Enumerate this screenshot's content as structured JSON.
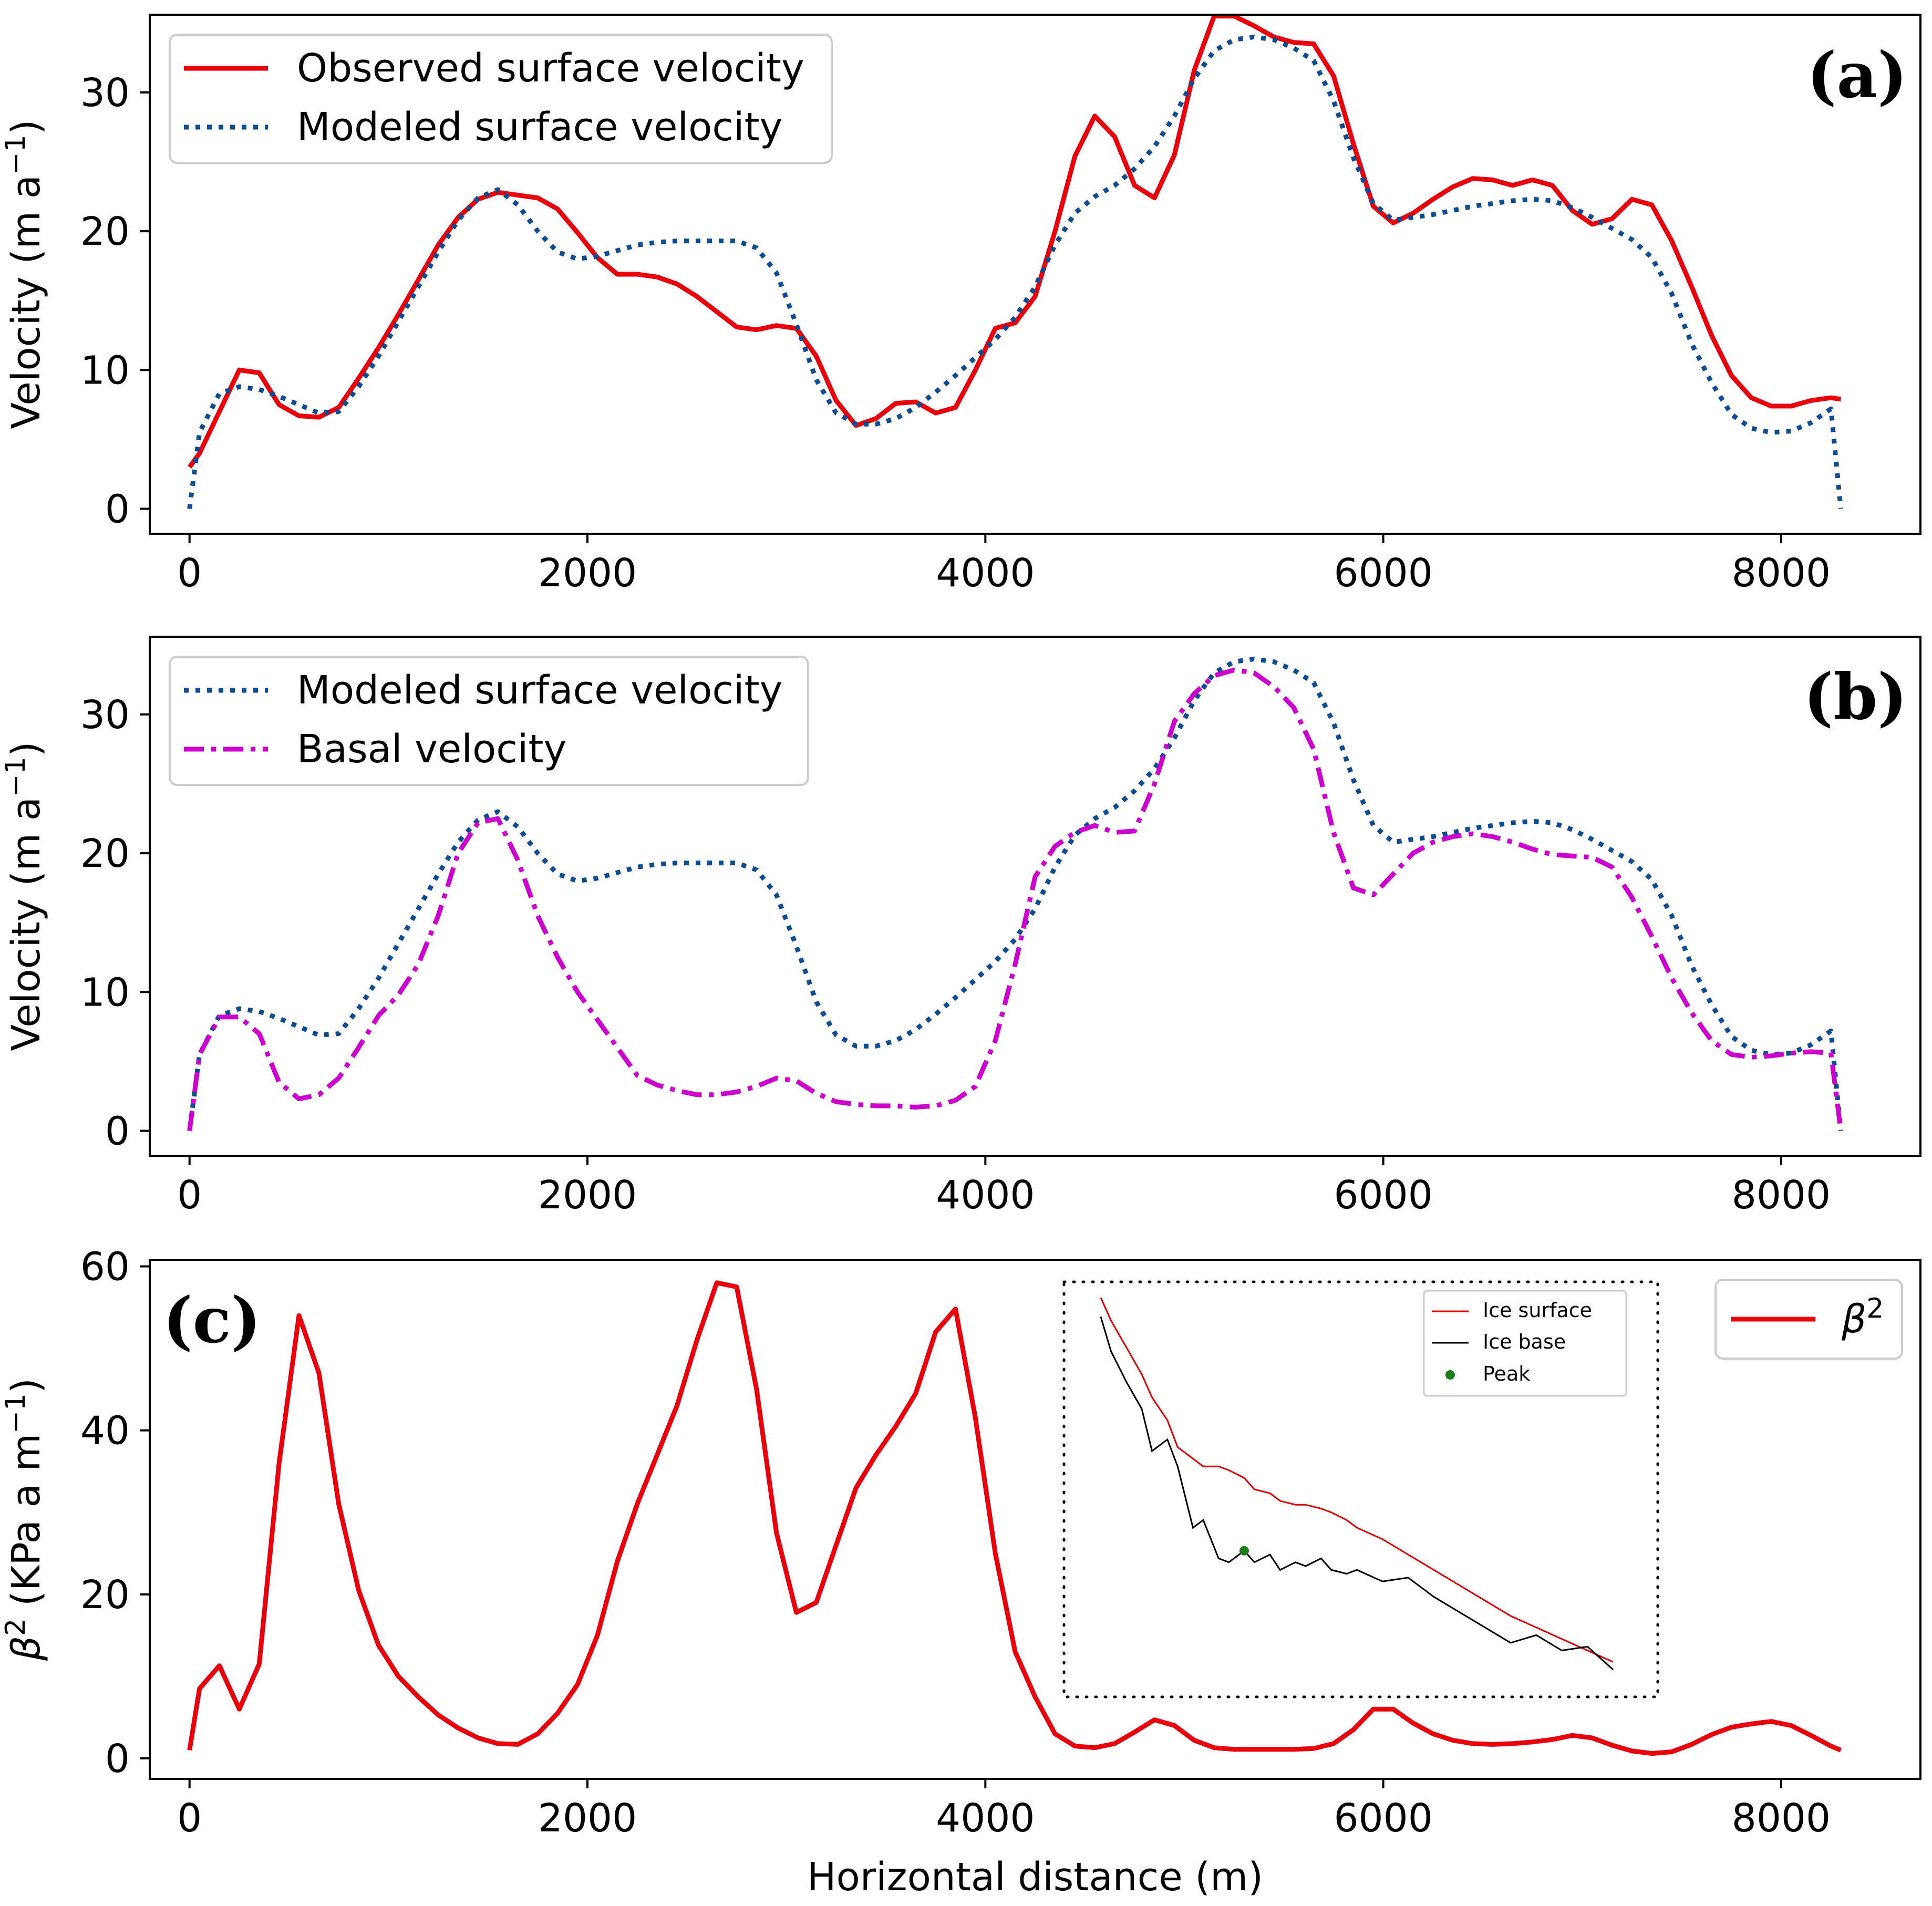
{
  "colors": {
    "observed": "#e8000b",
    "modeled": "#0e4c92",
    "basal": "#cc00cc",
    "beta": "#e8000b",
    "inset_surface": "#e00000",
    "inset_base": "#000000",
    "inset_peak": "#1a7f1a"
  },
  "chart_data": [
    {
      "type": "line",
      "panel_label": "(a)",
      "xlabel": "",
      "ylabel_text": "Velocity (m a",
      "ylabel_exp": "−1",
      "ylabel_close": ")",
      "xlim": [
        -200,
        8700
      ],
      "ylim": [
        -1.8,
        35.6
      ],
      "xticks": [
        0,
        2000,
        4000,
        6000,
        8000
      ],
      "yticks": [
        0,
        10,
        20,
        30
      ],
      "legend_position": "upper-left",
      "series": [
        {
          "name": "Observed surface velocity",
          "style": "solid",
          "color_key": "observed",
          "x": [
            0,
            50,
            150,
            250,
            350,
            450,
            550,
            650,
            750,
            850,
            950,
            1050,
            1150,
            1250,
            1350,
            1450,
            1550,
            1650,
            1750,
            1850,
            1950,
            2050,
            2150,
            2250,
            2350,
            2450,
            2550,
            2650,
            2750,
            2850,
            2950,
            3050,
            3150,
            3250,
            3350,
            3450,
            3550,
            3650,
            3750,
            3850,
            3950,
            4050,
            4150,
            4250,
            4350,
            4450,
            4550,
            4650,
            4750,
            4850,
            4950,
            5050,
            5150,
            5250,
            5350,
            5450,
            5550,
            5650,
            5750,
            5850,
            5950,
            6050,
            6150,
            6250,
            6350,
            6450,
            6550,
            6650,
            6750,
            6850,
            6950,
            7050,
            7150,
            7250,
            7350,
            7450,
            7550,
            7650,
            7750,
            7850,
            7950,
            8050,
            8150,
            8250,
            8300
          ],
          "values": [
            3,
            4,
            7,
            10,
            9.8,
            7.5,
            6.7,
            6.6,
            7.3,
            9.4,
            11.6,
            14,
            16.5,
            19,
            21,
            22.3,
            22.8,
            22.6,
            22.4,
            21.6,
            19.9,
            18.1,
            16.9,
            16.9,
            16.7,
            16.2,
            15.3,
            14.2,
            13.1,
            12.9,
            13.2,
            13,
            11,
            7.8,
            6,
            6.5,
            7.6,
            7.7,
            6.9,
            7.3,
            10,
            13,
            13.4,
            15.3,
            20,
            25.4,
            28.3,
            26.8,
            23.3,
            22.4,
            25.5,
            31.6,
            35.5,
            35.5,
            34.8,
            34,
            33.6,
            33.5,
            31.2,
            26.3,
            21.8,
            20.6,
            21.3,
            22.3,
            23.2,
            23.8,
            23.7,
            23.3,
            23.7,
            23.3,
            21.5,
            20.5,
            20.9,
            22.3,
            21.9,
            19.3,
            16,
            12.5,
            9.6,
            8,
            7.4,
            7.4,
            7.8,
            8,
            7.9
          ]
        },
        {
          "name": "Modeled surface velocity",
          "style": "dotted",
          "color_key": "modeled",
          "x": [
            0,
            50,
            150,
            250,
            350,
            450,
            550,
            650,
            750,
            850,
            950,
            1050,
            1150,
            1250,
            1350,
            1450,
            1550,
            1650,
            1750,
            1850,
            1950,
            2050,
            2150,
            2250,
            2350,
            2450,
            2550,
            2650,
            2750,
            2850,
            2950,
            3050,
            3150,
            3250,
            3350,
            3450,
            3550,
            3650,
            3750,
            3850,
            3950,
            4050,
            4150,
            4250,
            4350,
            4450,
            4550,
            4650,
            4750,
            4850,
            4950,
            5050,
            5150,
            5250,
            5350,
            5450,
            5550,
            5650,
            5750,
            5850,
            5950,
            6050,
            6150,
            6250,
            6350,
            6450,
            6550,
            6650,
            6750,
            6850,
            6950,
            7050,
            7150,
            7250,
            7350,
            7450,
            7550,
            7650,
            7750,
            7850,
            7950,
            8050,
            8150,
            8250,
            8300
          ],
          "values": [
            0,
            5.5,
            8.3,
            8.8,
            8.6,
            8.1,
            7.5,
            6.9,
            7,
            8.8,
            11,
            13.5,
            16,
            18.5,
            20.8,
            22.4,
            23,
            21.9,
            20,
            18.5,
            18,
            18.2,
            18.6,
            19,
            19.2,
            19.3,
            19.3,
            19.3,
            19.3,
            18.8,
            17,
            13.3,
            9.3,
            6.9,
            6.1,
            6.1,
            6.5,
            7.3,
            8.4,
            9.6,
            10.9,
            12.2,
            13.8,
            16,
            19,
            21.3,
            22.5,
            23.3,
            24.5,
            26.1,
            28.3,
            31,
            33,
            33.8,
            34,
            33.8,
            33.2,
            32.3,
            29.4,
            25.3,
            22,
            20.8,
            21,
            21.2,
            21.5,
            21.8,
            22,
            22.2,
            22.3,
            22.2,
            21.7,
            21,
            20.2,
            19.4,
            18.1,
            15.5,
            11.9,
            9.1,
            6.8,
            5.8,
            5.5,
            5.6,
            6.2,
            7.2,
            0
          ]
        }
      ]
    },
    {
      "type": "line",
      "panel_label": "(b)",
      "xlabel": "",
      "ylabel_text": "Velocity (m a",
      "ylabel_exp": "−1",
      "ylabel_close": ")",
      "xlim": [
        -200,
        8700
      ],
      "ylim": [
        -1.8,
        35.6
      ],
      "xticks": [
        0,
        2000,
        4000,
        6000,
        8000
      ],
      "yticks": [
        0,
        10,
        20,
        30
      ],
      "legend_position": "upper-left",
      "series": [
        {
          "name": "Modeled surface velocity",
          "style": "dotted",
          "color_key": "modeled",
          "x": [
            0,
            50,
            150,
            250,
            350,
            450,
            550,
            650,
            750,
            850,
            950,
            1050,
            1150,
            1250,
            1350,
            1450,
            1550,
            1650,
            1750,
            1850,
            1950,
            2050,
            2150,
            2250,
            2350,
            2450,
            2550,
            2650,
            2750,
            2850,
            2950,
            3050,
            3150,
            3250,
            3350,
            3450,
            3550,
            3650,
            3750,
            3850,
            3950,
            4050,
            4150,
            4250,
            4350,
            4450,
            4550,
            4650,
            4750,
            4850,
            4950,
            5050,
            5150,
            5250,
            5350,
            5450,
            5550,
            5650,
            5750,
            5850,
            5950,
            6050,
            6150,
            6250,
            6350,
            6450,
            6550,
            6650,
            6750,
            6850,
            6950,
            7050,
            7150,
            7250,
            7350,
            7450,
            7550,
            7650,
            7750,
            7850,
            7950,
            8050,
            8150,
            8250,
            8300
          ],
          "values": [
            0,
            5.5,
            8.3,
            8.8,
            8.6,
            8.1,
            7.5,
            6.9,
            7,
            8.8,
            11,
            13.5,
            16,
            18.5,
            20.8,
            22.4,
            23,
            21.9,
            20,
            18.5,
            18,
            18.2,
            18.6,
            19,
            19.2,
            19.3,
            19.3,
            19.3,
            19.3,
            18.8,
            17,
            13.3,
            9.3,
            6.9,
            6.1,
            6.1,
            6.5,
            7.3,
            8.4,
            9.6,
            10.9,
            12.2,
            13.8,
            16,
            19,
            21.3,
            22.5,
            23.3,
            24.5,
            26.1,
            28.3,
            31,
            33,
            33.8,
            34,
            33.8,
            33.2,
            32.3,
            29.4,
            25.3,
            22,
            20.8,
            21,
            21.2,
            21.5,
            21.8,
            22,
            22.2,
            22.3,
            22.2,
            21.7,
            21,
            20.2,
            19.4,
            18.1,
            15.5,
            11.9,
            9.1,
            6.8,
            5.8,
            5.5,
            5.6,
            6.2,
            7.2,
            0
          ]
        },
        {
          "name": "Basal velocity",
          "style": "dashdot",
          "color_key": "basal",
          "x": [
            0,
            50,
            150,
            250,
            350,
            450,
            550,
            650,
            750,
            850,
            950,
            1050,
            1150,
            1250,
            1350,
            1450,
            1550,
            1650,
            1750,
            1850,
            1950,
            2050,
            2150,
            2250,
            2350,
            2450,
            2550,
            2650,
            2750,
            2850,
            2950,
            3050,
            3150,
            3250,
            3350,
            3450,
            3550,
            3650,
            3750,
            3850,
            3950,
            4050,
            4150,
            4250,
            4350,
            4450,
            4550,
            4650,
            4750,
            4850,
            4950,
            5050,
            5150,
            5250,
            5350,
            5450,
            5550,
            5650,
            5750,
            5850,
            5950,
            6050,
            6150,
            6250,
            6350,
            6450,
            6550,
            6650,
            6750,
            6850,
            6950,
            7050,
            7150,
            7250,
            7350,
            7450,
            7550,
            7650,
            7750,
            7850,
            7950,
            8050,
            8150,
            8250,
            8300
          ],
          "values": [
            0,
            5.5,
            8.2,
            8.2,
            7,
            3.5,
            2.3,
            2.6,
            3.8,
            6,
            8.3,
            9.8,
            12,
            15.5,
            20,
            22.2,
            22.5,
            19.5,
            15.5,
            12.5,
            10,
            8,
            6,
            4,
            3.3,
            2.9,
            2.6,
            2.6,
            2.8,
            3.2,
            3.8,
            3.6,
            2.7,
            2.1,
            1.9,
            1.8,
            1.8,
            1.7,
            1.8,
            2.2,
            3.2,
            6.5,
            12,
            18.3,
            20.5,
            21.5,
            22,
            21.5,
            21.6,
            25,
            29.5,
            31.5,
            32.8,
            33.2,
            33,
            32,
            30.5,
            27.5,
            21.5,
            17.5,
            17,
            18.5,
            20,
            20.8,
            21.2,
            21.4,
            21.2,
            20.8,
            20.3,
            19.9,
            19.8,
            19.7,
            19,
            16.8,
            14,
            11,
            8.5,
            6.5,
            5.5,
            5.3,
            5.4,
            5.6,
            5.7,
            5.6,
            0
          ]
        }
      ]
    },
    {
      "type": "line",
      "panel_label": "(c)",
      "xlabel": "Horizontal distance (m)",
      "ylabel_text": "(KPa a m",
      "ylabel_exp": "−1",
      "ylabel_close": ")",
      "ylabel_symbol": "β",
      "ylabel_symbol_exp": "2",
      "xlim": [
        -200,
        8700
      ],
      "ylim": [
        -2.5,
        60.8
      ],
      "xticks": [
        0,
        2000,
        4000,
        6000,
        8000
      ],
      "yticks": [
        0,
        20,
        40,
        60
      ],
      "legend_position": "upper-right",
      "series": [
        {
          "name": "β",
          "name_exp": "2",
          "style": "solid",
          "color_key": "beta",
          "x": [
            0,
            50,
            150,
            250,
            350,
            450,
            550,
            650,
            750,
            850,
            950,
            1050,
            1150,
            1250,
            1350,
            1450,
            1550,
            1650,
            1750,
            1850,
            1950,
            2050,
            2150,
            2250,
            2350,
            2450,
            2550,
            2650,
            2750,
            2850,
            2950,
            3050,
            3150,
            3250,
            3350,
            3450,
            3550,
            3650,
            3750,
            3850,
            3950,
            4050,
            4150,
            4250,
            4350,
            4450,
            4550,
            4650,
            4750,
            4850,
            4950,
            5050,
            5150,
            5250,
            5350,
            5450,
            5550,
            5650,
            5750,
            5850,
            5950,
            6050,
            6150,
            6250,
            6350,
            6450,
            6550,
            6650,
            6750,
            6850,
            6950,
            7050,
            7150,
            7250,
            7350,
            7450,
            7550,
            7650,
            7750,
            7850,
            7950,
            8050,
            8150,
            8250,
            8300
          ],
          "values": [
            1,
            8.5,
            11.3,
            6,
            11.5,
            36,
            54,
            47,
            31,
            20.5,
            13.8,
            10,
            7.5,
            5.3,
            3.7,
            2.5,
            1.8,
            1.7,
            3,
            5.5,
            9,
            15,
            24,
            31,
            37,
            43,
            51,
            58,
            57.5,
            45,
            27.5,
            17.8,
            19,
            26,
            33,
            37,
            40.5,
            44.5,
            52,
            54.8,
            41.5,
            25,
            13,
            7.5,
            3,
            1.5,
            1.3,
            1.8,
            3.2,
            4.7,
            4,
            2.2,
            1.3,
            1.1,
            1.1,
            1.1,
            1.1,
            1.2,
            1.8,
            3.5,
            6,
            6,
            4.3,
            3,
            2.2,
            1.8,
            1.7,
            1.8,
            2,
            2.3,
            2.8,
            2.5,
            1.6,
            0.9,
            0.6,
            0.8,
            1.7,
            2.9,
            3.8,
            4.2,
            4.5,
            4,
            2.8,
            1.5,
            1
          ]
        }
      ],
      "inset": {
        "legend": [
          {
            "label": "Ice surface",
            "color_key": "inset_surface"
          },
          {
            "label": "Ice base",
            "color_key": "inset_base"
          },
          {
            "label": "Peak",
            "color_key": "inset_peak"
          }
        ],
        "profile_x": [
          0,
          0.02,
          0.05,
          0.08,
          0.1,
          0.13,
          0.15,
          0.18,
          0.2,
          0.23,
          0.25,
          0.28,
          0.3,
          0.33,
          0.35,
          0.38,
          0.4,
          0.43,
          0.45,
          0.48,
          0.5,
          0.55,
          0.6,
          0.65,
          0.7,
          0.75,
          0.8,
          0.85,
          0.9,
          0.95,
          1
        ],
        "ice_surface": [
          0,
          0.06,
          0.13,
          0.2,
          0.26,
          0.32,
          0.39,
          0.42,
          0.44,
          0.44,
          0.45,
          0.47,
          0.5,
          0.51,
          0.53,
          0.54,
          0.54,
          0.55,
          0.56,
          0.58,
          0.6,
          0.63,
          0.67,
          0.71,
          0.75,
          0.79,
          0.83,
          0.86,
          0.89,
          0.92,
          0.95
        ],
        "ice_base": [
          0.05,
          0.14,
          0.22,
          0.29,
          0.4,
          0.37,
          0.44,
          0.6,
          0.58,
          0.68,
          0.69,
          0.66,
          0.69,
          0.67,
          0.71,
          0.69,
          0.7,
          0.68,
          0.71,
          0.72,
          0.71,
          0.74,
          0.73,
          0.78,
          0.82,
          0.86,
          0.9,
          0.88,
          0.92,
          0.91,
          0.97
        ],
        "peak_index": 11
      }
    }
  ]
}
